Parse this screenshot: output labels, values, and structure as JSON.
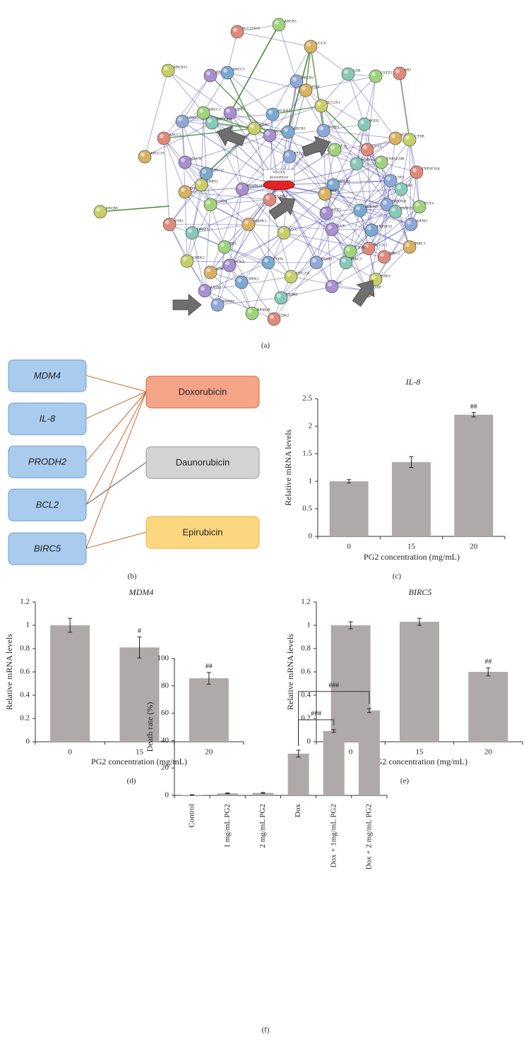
{
  "network": {
    "panel": "(a)",
    "center": [
      "VEGFA",
      "doxorubicin"
    ],
    "nodes": [
      "ABCB5",
      "SLC22A16",
      "UGCG",
      "ABCB11",
      "ABCC6",
      "ABCC5",
      "DECR1",
      "GSR",
      "GSTZ1",
      "SRJ",
      "ATF4",
      "SLC2A1",
      "CD9",
      "RUNX3",
      "NPHS2",
      "PRODH2",
      "ABCC1",
      "ABCC3",
      "ABCC10",
      "EDN1",
      "PLAU",
      "ABCB1",
      "MMP1",
      "SOD2",
      "IL-8",
      "CCL2",
      "SOD1",
      "CTSB",
      "MYCN",
      "ABCG2",
      "PTGS2",
      "FOXO3",
      "TNFSF10B",
      "TNFSF10A",
      "TOP2B",
      "THBS1",
      "MAPK14",
      "NFKB1",
      "CSF2",
      "FAS",
      "TOP2A",
      "EGFR",
      "BCL2",
      "ABCB8",
      "AKT1",
      "MAPK8",
      "NFKBIA",
      "FASLG",
      "FUT4",
      "TOP1",
      "MAPK1",
      "MYC",
      "BAX",
      "TNFSF10",
      "AIFM1",
      "DNMT1",
      "RB1",
      "BCL2L1",
      "BIRC3",
      "CHEK2",
      "PCNA",
      "PTEN",
      "PARP1",
      "BIRC5",
      "CASP3",
      "BIRC2",
      "ATM",
      "CDC25C",
      "AXIN1",
      "CHEK1",
      "MDM4",
      "MDM2",
      "RRM2B",
      "CDK2",
      "XIAP",
      "BAK1",
      "MC"
    ]
  },
  "diagram": {
    "panel": "(b)",
    "genes": [
      "MDM4",
      "IL-8",
      "PRODH2",
      "BCL2",
      "BIRC5"
    ],
    "drugs": [
      "Doxorubicin",
      "Daunorubicin",
      "Epirubicin"
    ]
  },
  "chart_data": [
    {
      "type": "bar",
      "panel": "(c)",
      "title": "IL-8",
      "categories": [
        "0",
        "15",
        "20"
      ],
      "values": [
        1.0,
        1.35,
        2.21
      ],
      "errors": [
        0.03,
        0.1,
        0.04
      ],
      "significance": [
        null,
        null,
        "##"
      ],
      "color": "#b0a9a9",
      "xlabel": "PG2 concentration (mg/mL)",
      "ylabel": "Relative mRNA levels",
      "ylim": [
        0,
        2.5
      ],
      "yticks": [
        0,
        0.5,
        1,
        1.5,
        2,
        2.5
      ]
    },
    {
      "type": "bar",
      "panel": "(d)",
      "title": "MDM4",
      "categories": [
        "0",
        "15",
        "20"
      ],
      "values": [
        1.0,
        0.81,
        0.545
      ],
      "errors": [
        0.06,
        0.09,
        0.05
      ],
      "significance": [
        null,
        "#",
        "##"
      ],
      "color": "#b0a9a9",
      "xlabel": "PG2 concentration (mg/mL)",
      "ylabel": "Relative mRNA levels",
      "ylim": [
        0,
        1.2
      ],
      "yticks": [
        0,
        0.2,
        0.4,
        0.6,
        0.8,
        1,
        1.2
      ]
    },
    {
      "type": "bar",
      "panel": "(e)",
      "title": "BIRC5",
      "categories": [
        "0",
        "15",
        "20"
      ],
      "values": [
        1.0,
        1.03,
        0.6
      ],
      "errors": [
        0.03,
        0.03,
        0.035
      ],
      "significance": [
        null,
        null,
        "##"
      ],
      "color": "#b0a9a9",
      "xlabel": "PG2 concentration (mg/mL)",
      "ylabel": "Relative mRNA levels",
      "ylim": [
        0,
        1.2
      ],
      "yticks": [
        0,
        0.2,
        0.4,
        0.6,
        0.8,
        1,
        1.2
      ]
    },
    {
      "type": "bar",
      "panel": "(f)",
      "categories": [
        "Control",
        "1 mg/mL PG2",
        "2 mg/mL PG2",
        "Dox",
        "Dox + 1mg/mL PG2",
        "Dox + 2 mg/mL PG2"
      ],
      "values": [
        0.3,
        1.5,
        1.8,
        30.5,
        47,
        62
      ],
      "errors": [
        0.2,
        0.3,
        0.3,
        2.5,
        1,
        1.5
      ],
      "comparisons": [
        {
          "from": 3,
          "to": 4,
          "label": "###"
        },
        {
          "from": 3,
          "to": 5,
          "label": "###"
        }
      ],
      "color": "#b0a9a9",
      "ylabel": "Death rate (%)",
      "ylim": [
        0,
        100
      ],
      "yticks": [
        0,
        20,
        40,
        60,
        80,
        100
      ]
    }
  ]
}
